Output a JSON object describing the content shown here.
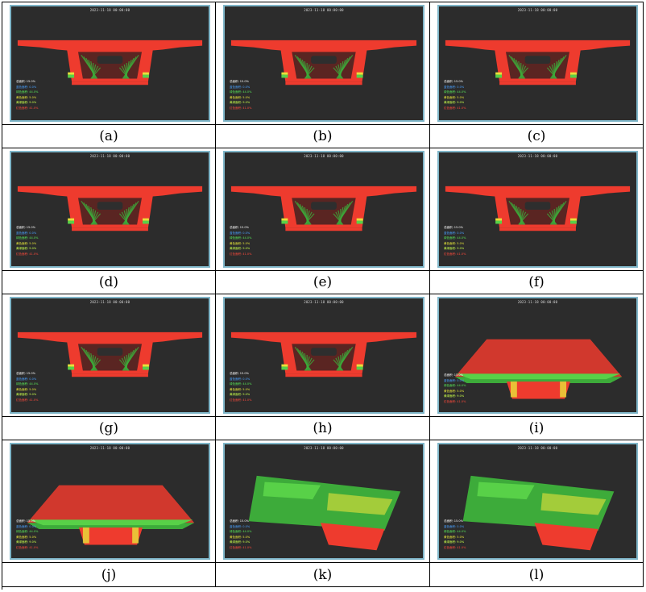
{
  "timestamp": "2023-11-18 00:00:00",
  "legend": [
    {
      "label": "总面积: 15.0%",
      "color": "#ffffff"
    },
    {
      "label": "蓝色面积: 0.0%",
      "color": "#4aa0ff"
    },
    {
      "label": "绿色面积: 44.0%",
      "color": "#58e658"
    },
    {
      "label": "黄色面积: 5.0%",
      "color": "#e8e83a"
    },
    {
      "label": "黄绿面积: 9.0%",
      "color": "#c9ff4a"
    },
    {
      "label": "红色面积: 41.0%",
      "color": "#ff4a3c"
    }
  ],
  "panels": [
    {
      "label": "(a)",
      "view": "front-1"
    },
    {
      "label": "(b)",
      "view": "front-2"
    },
    {
      "label": "(c)",
      "view": "front-3"
    },
    {
      "label": "(d)",
      "view": "front-4"
    },
    {
      "label": "(e)",
      "view": "front-5"
    },
    {
      "label": "(f)",
      "view": "front-6"
    },
    {
      "label": "(g)",
      "view": "front-7"
    },
    {
      "label": "(h)",
      "view": "front-8"
    },
    {
      "label": "(i)",
      "view": "oblique-1"
    },
    {
      "label": "(j)",
      "view": "oblique-2"
    },
    {
      "label": "(k)",
      "view": "oblique-3"
    },
    {
      "label": "(l)",
      "view": "oblique-4"
    }
  ],
  "colors": {
    "red": "#ee3b2e",
    "green": "#3dab3a",
    "light_green": "#58d148",
    "yellow": "#e8e23a",
    "dark_bg": "#2c2c2c",
    "frame": "#7fb6c9"
  }
}
